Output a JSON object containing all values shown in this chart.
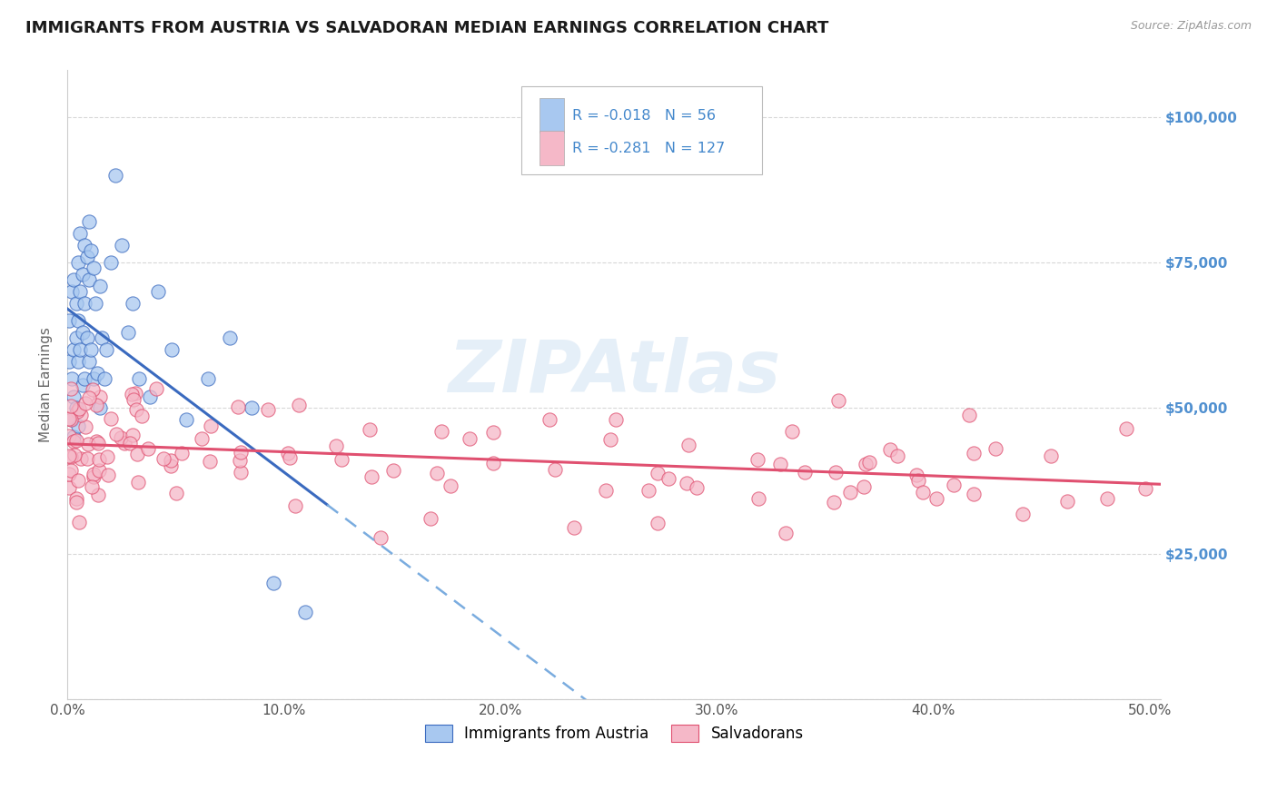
{
  "title": "IMMIGRANTS FROM AUSTRIA VS SALVADORAN MEDIAN EARNINGS CORRELATION CHART",
  "source_text": "Source: ZipAtlas.com",
  "ylabel": "Median Earnings",
  "xlim": [
    0.0,
    0.505
  ],
  "ylim": [
    0,
    108000
  ],
  "yticks": [
    0,
    25000,
    50000,
    75000,
    100000
  ],
  "ytick_labels": [
    "",
    "$25,000",
    "$50,000",
    "$75,000",
    "$100,000"
  ],
  "xticks": [
    0.0,
    0.1,
    0.2,
    0.3,
    0.4,
    0.5
  ],
  "xtick_labels": [
    "0.0%",
    "10.0%",
    "20.0%",
    "30.0%",
    "40.0%",
    "50.0%"
  ],
  "watermark": "ZIPAtlas",
  "color_austria": "#a8c8f0",
  "color_salvadoran": "#f5b8c8",
  "color_line_austria": "#3a6abf",
  "color_line_salvadoran": "#e05070",
  "color_dashed_blue": "#7aacdf",
  "background_color": "#FFFFFF",
  "title_color": "#1a1a1a",
  "right_ytick_color": "#5090d0",
  "grid_color": "#d8d8d8",
  "legend_text_color": "#333333",
  "legend_num_color": "#4488cc",
  "r1_val": "-0.018",
  "n1_val": "56",
  "r2_val": "-0.281",
  "n2_val": "127"
}
